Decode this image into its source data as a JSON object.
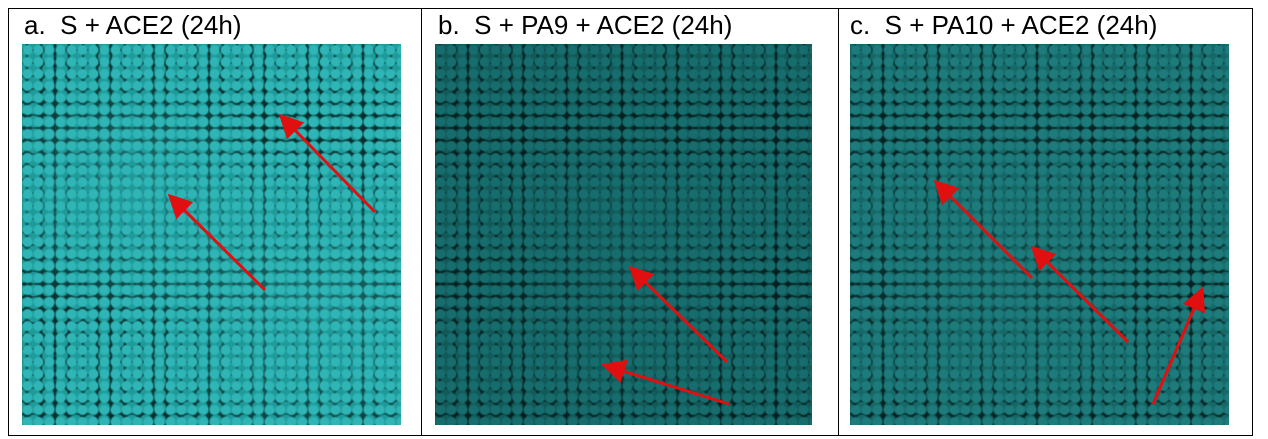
{
  "panels": [
    {
      "label": "a.  S + ACE2 (24h)"
    },
    {
      "label": "b.  S + PA9 + ACE2 (24h)"
    },
    {
      "label": "c.  S + PA10 + ACE2 (24h)"
    }
  ]
}
